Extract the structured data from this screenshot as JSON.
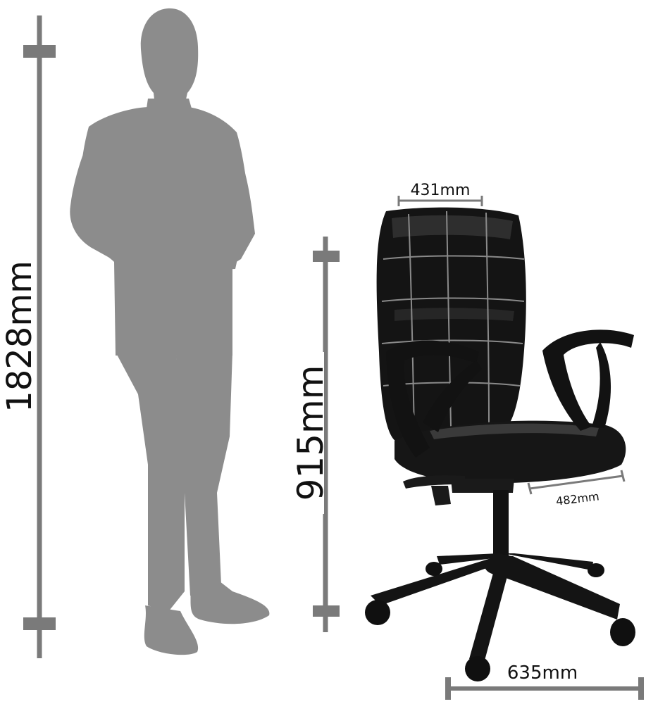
{
  "dimensions": {
    "person_height": "1828mm",
    "chair_height": "915mm",
    "backrest_width": "431mm",
    "seat_depth": "482mm",
    "base_width": "635mm"
  },
  "figures": {
    "person": "person-silhouette",
    "chair": "office-chair"
  },
  "colors": {
    "dimension_line": "#7a7a7a",
    "silhouette": "#8c8c8c",
    "chair_body": "#141414",
    "chair_highlight": "#3a3a3a",
    "stitching": "#8a8a8a",
    "text": "#111111"
  }
}
